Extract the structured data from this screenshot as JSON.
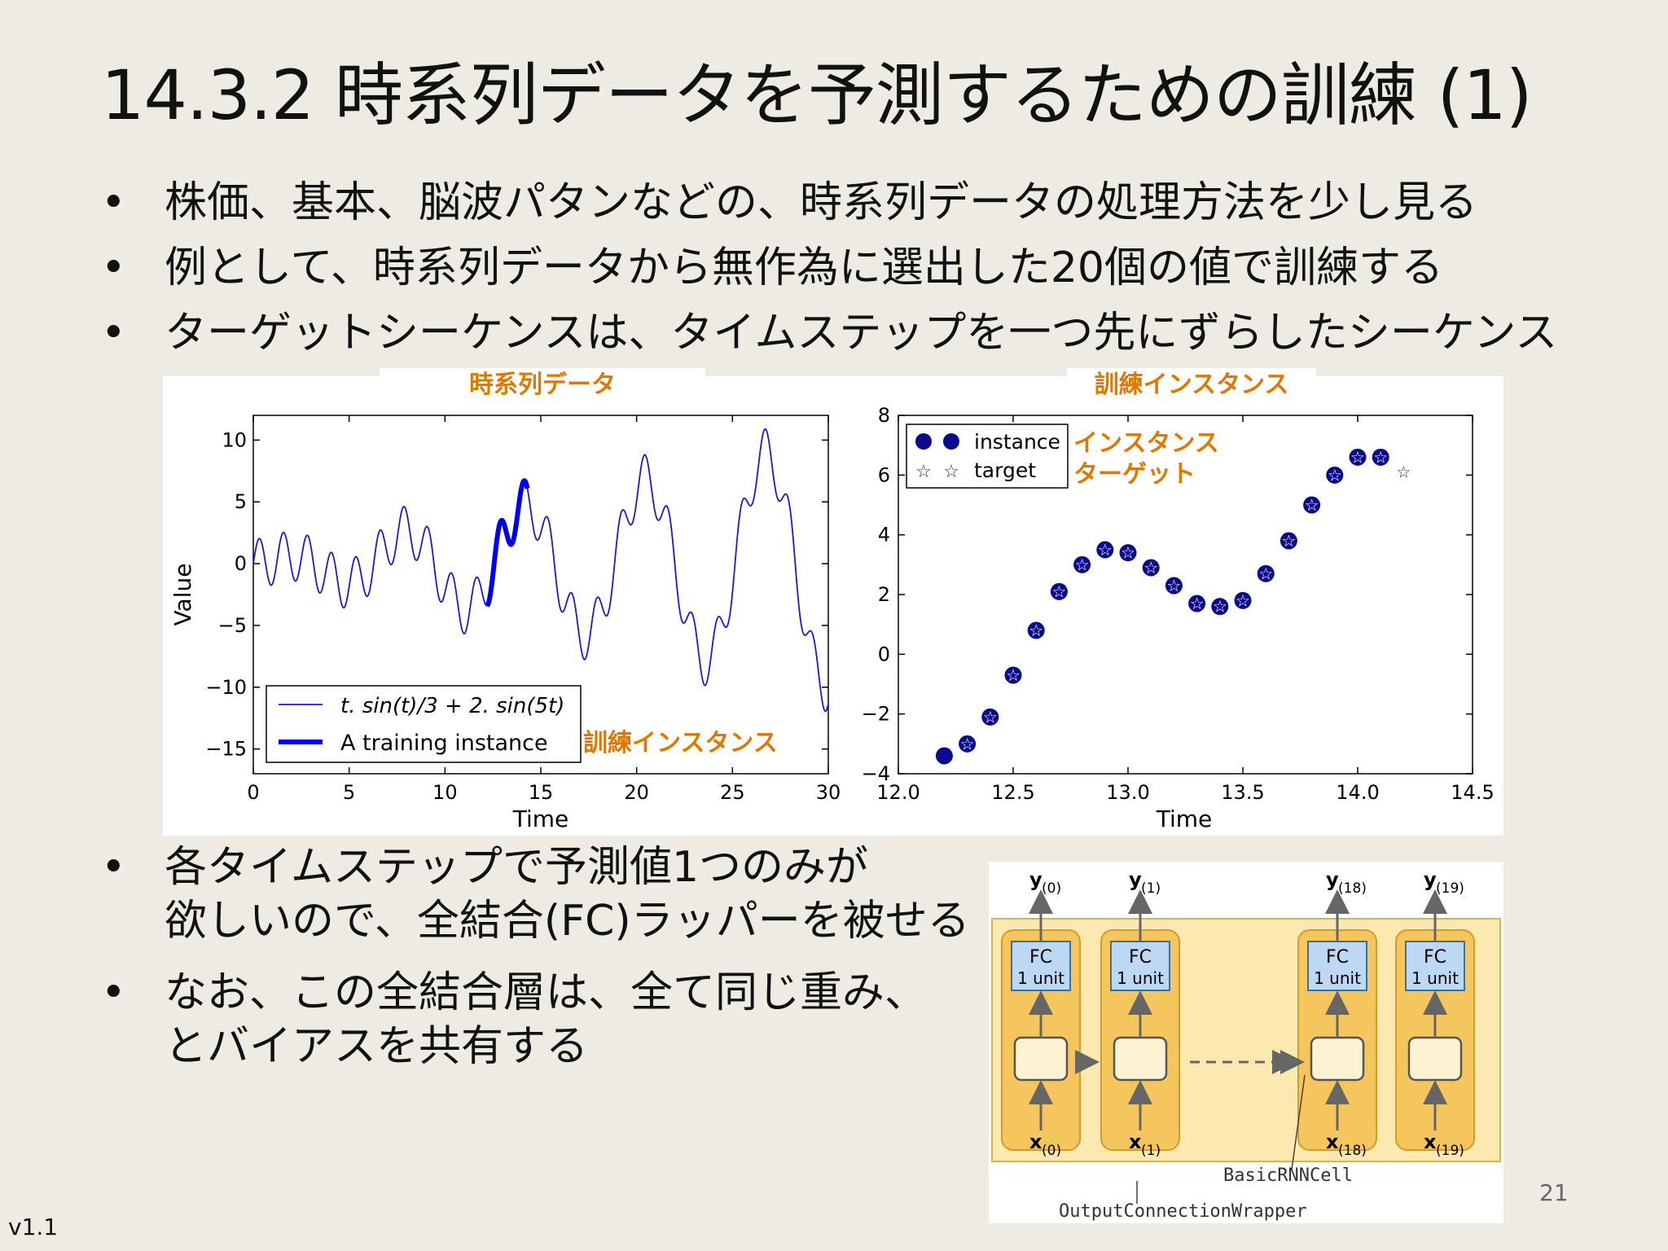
{
  "slide": {
    "title": "14.3.2 時系列データを予測するための訓練 (1)",
    "bullets_top": [
      "株価、基本、脳波パタンなどの、時系列データの処理方法を少し見る",
      "例として、時系列データから無作為に選出した20個の値で訓練する",
      "ターゲットシーケンスは、タイムステップを一つ先にずらしたシーケンス"
    ],
    "bullets_bottom": [
      [
        "各タイムステップで予測値1つのみが",
        "欲しいので、全結合(FC)ラッパーを被せる"
      ],
      [
        "なお、この全結合層は、全て同じ重み、",
        "とバイアスを共有する"
      ]
    ],
    "bullet_char": "•",
    "page_number": "21",
    "version": "v1.1"
  },
  "figure_left": {
    "caption": "時系列データ",
    "annotation": "訓練インスタンス",
    "legend_series": "t. sin(t)/3 + 2. sin(5t)",
    "legend_instance": "A training instance"
  },
  "figure_right": {
    "caption": "訓練インスタンス",
    "legend_instance": "instance",
    "legend_target": "target",
    "annotation_instance": "インスタンス",
    "annotation_target": "ターゲット"
  },
  "chart_data": [
    {
      "type": "line",
      "function": "t*sin(t)/3 + 2*sin(5t)",
      "xlabel": "Time",
      "ylabel": "Value",
      "xlim": [
        0,
        30
      ],
      "ylim": [
        -17,
        12
      ],
      "xticks": [
        0,
        5,
        10,
        15,
        20,
        25,
        30
      ],
      "yticks": [
        10,
        5,
        0,
        -5,
        -10,
        -15
      ],
      "legend": "bottom-left",
      "series": [
        {
          "name": "t. sin(t)/3 + 2. sin(5t)",
          "x_range": [
            0,
            30
          ],
          "color": "#1a1ad6"
        },
        {
          "name": "A training instance",
          "x_range": [
            12.2,
            14.3
          ],
          "color": "#0000ee"
        }
      ]
    },
    {
      "type": "scatter",
      "xlabel": "Time",
      "xlim": [
        12.0,
        14.5
      ],
      "ylim": [
        -4,
        8
      ],
      "xticks": [
        12.0,
        12.5,
        13.0,
        13.5,
        14.0,
        14.5
      ],
      "yticks": [
        8,
        6,
        4,
        2,
        0,
        -2,
        -4
      ],
      "legend": "top-left",
      "series": [
        {
          "name": "instance",
          "x": [
            12.2,
            12.3,
            12.4,
            12.5,
            12.6,
            12.7,
            12.8,
            12.9,
            13.0,
            13.1,
            13.2,
            13.3,
            13.4,
            13.5,
            13.6,
            13.7,
            13.8,
            13.9,
            14.0,
            14.1
          ],
          "y": [
            -3.4,
            -3.0,
            -2.1,
            -0.7,
            0.8,
            2.1,
            3.0,
            3.5,
            3.4,
            2.9,
            2.3,
            1.7,
            1.6,
            1.8,
            2.7,
            3.8,
            5.0,
            6.0,
            6.6,
            6.6
          ]
        },
        {
          "name": "target",
          "x": [
            12.3,
            12.4,
            12.5,
            12.6,
            12.7,
            12.8,
            12.9,
            13.0,
            13.1,
            13.2,
            13.3,
            13.4,
            13.5,
            13.6,
            13.7,
            13.8,
            13.9,
            14.0,
            14.1,
            14.2
          ],
          "y": [
            -3.0,
            -2.1,
            -0.7,
            0.8,
            2.1,
            3.0,
            3.5,
            3.4,
            2.9,
            2.3,
            1.7,
            1.6,
            1.8,
            2.7,
            3.8,
            5.0,
            6.0,
            6.6,
            6.6,
            6.1
          ]
        }
      ]
    }
  ],
  "rnn_diagram": {
    "cells": [
      {
        "y": "y",
        "y_sub": "(0)",
        "x": "x",
        "x_sub": "(0)",
        "fc": "FC",
        "unit": "1 unit"
      },
      {
        "y": "y",
        "y_sub": "(1)",
        "x": "x",
        "x_sub": "(1)",
        "fc": "FC",
        "unit": "1 unit"
      },
      {
        "y": "y",
        "y_sub": "(18)",
        "x": "x",
        "x_sub": "(18)",
        "fc": "FC",
        "unit": "1 unit"
      },
      {
        "y": "y",
        "y_sub": "(19)",
        "x": "x",
        "x_sub": "(19)",
        "fc": "FC",
        "unit": "1 unit"
      }
    ],
    "label_cell": "BasicRNNCell",
    "label_wrapper": "OutputConnectionWrapper"
  }
}
